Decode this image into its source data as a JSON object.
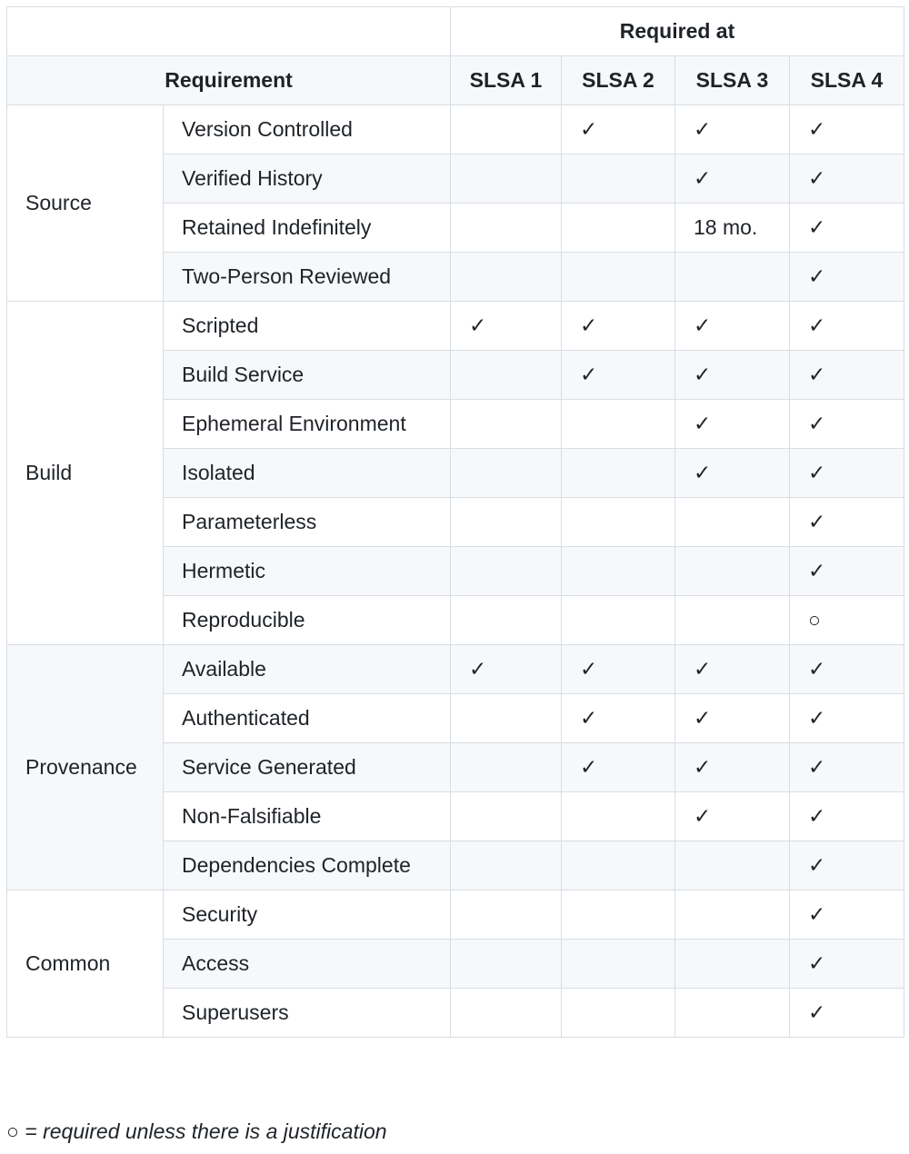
{
  "header": {
    "required_at": "Required at",
    "requirement": "Requirement",
    "levels": [
      "SLSA 1",
      "SLSA 2",
      "SLSA 3",
      "SLSA 4"
    ]
  },
  "groups": [
    {
      "name": "Source",
      "items": [
        {
          "requirement": "Version Controlled",
          "levels": [
            "",
            "✓",
            "✓",
            "✓"
          ]
        },
        {
          "requirement": "Verified History",
          "levels": [
            "",
            "",
            "✓",
            "✓"
          ]
        },
        {
          "requirement": "Retained Indefinitely",
          "levels": [
            "",
            "",
            "18 mo.",
            "✓"
          ]
        },
        {
          "requirement": "Two-Person Reviewed",
          "levels": [
            "",
            "",
            "",
            "✓"
          ]
        }
      ]
    },
    {
      "name": "Build",
      "items": [
        {
          "requirement": "Scripted",
          "levels": [
            "✓",
            "✓",
            "✓",
            "✓"
          ]
        },
        {
          "requirement": "Build Service",
          "levels": [
            "",
            "✓",
            "✓",
            "✓"
          ]
        },
        {
          "requirement": "Ephemeral Environment",
          "levels": [
            "",
            "",
            "✓",
            "✓"
          ]
        },
        {
          "requirement": "Isolated",
          "levels": [
            "",
            "",
            "✓",
            "✓"
          ]
        },
        {
          "requirement": "Parameterless",
          "levels": [
            "",
            "",
            "",
            "✓"
          ]
        },
        {
          "requirement": "Hermetic",
          "levels": [
            "",
            "",
            "",
            "✓"
          ]
        },
        {
          "requirement": "Reproducible",
          "levels": [
            "",
            "",
            "",
            "○"
          ]
        }
      ]
    },
    {
      "name": "Provenance",
      "items": [
        {
          "requirement": "Available",
          "levels": [
            "✓",
            "✓",
            "✓",
            "✓"
          ]
        },
        {
          "requirement": "Authenticated",
          "levels": [
            "",
            "✓",
            "✓",
            "✓"
          ]
        },
        {
          "requirement": "Service Generated",
          "levels": [
            "",
            "✓",
            "✓",
            "✓"
          ]
        },
        {
          "requirement": "Non-Falsifiable",
          "levels": [
            "",
            "",
            "✓",
            "✓"
          ]
        },
        {
          "requirement": "Dependencies Complete",
          "levels": [
            "",
            "",
            "",
            "✓"
          ]
        }
      ]
    },
    {
      "name": "Common",
      "items": [
        {
          "requirement": "Security",
          "levels": [
            "",
            "",
            "",
            "✓"
          ]
        },
        {
          "requirement": "Access",
          "levels": [
            "",
            "",
            "",
            "✓"
          ]
        },
        {
          "requirement": "Superusers",
          "levels": [
            "",
            "",
            "",
            "✓"
          ]
        }
      ]
    }
  ],
  "footnote": "○ = required unless there is a justification"
}
